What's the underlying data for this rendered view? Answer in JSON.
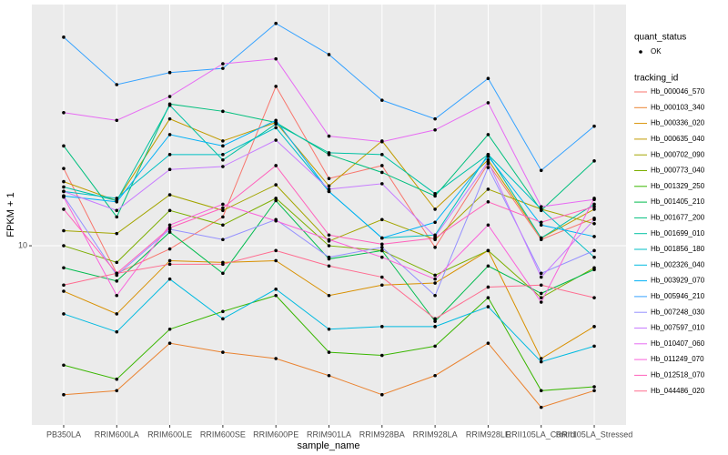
{
  "chart_data": {
    "type": "line",
    "x_label": "sample_name",
    "y_label": "FPKM + 1",
    "log_scale": true,
    "grid": true,
    "point_color": "#000000",
    "legend_position": "right",
    "legend_titles": [
      "quant_status",
      "tracking_id"
    ],
    "point_legend_entries": [
      "OK"
    ],
    "categories": [
      "PB350LA",
      "RRIM600LA",
      "RRIM600LE",
      "RRIM600SE",
      "RRIM600PE",
      "RRIM901LA",
      "RRIM928BA",
      "RRIM928LA",
      "RRIM928LE",
      "RRII105LA_Control",
      "RRII105LA_Stressed"
    ],
    "ylim": [
      3.22,
      45.96
    ],
    "yticks": [
      10
    ],
    "series": [
      {
        "name": "Hb_000046_570",
        "color": "#F8766D",
        "values": [
          16.3,
          8.4,
          9.8,
          12.0,
          27.4,
          15.3,
          16.6,
          9.9,
          16.8,
          10.4,
          11.9
        ]
      },
      {
        "name": "Hb_000103_340",
        "color": "#EA8331",
        "values": [
          3.9,
          4.0,
          5.4,
          5.1,
          4.9,
          4.4,
          3.9,
          4.4,
          5.4,
          3.6,
          4.0
        ]
      },
      {
        "name": "Hb_000336_020",
        "color": "#D89000",
        "values": [
          7.5,
          6.5,
          9.1,
          9.0,
          9.1,
          7.3,
          7.8,
          7.9,
          9.7,
          4.9,
          6.0
        ]
      },
      {
        "name": "Hb_000635_040",
        "color": "#C09B00",
        "values": [
          15.0,
          13.3,
          22.3,
          19.4,
          21.8,
          14.6,
          19.4,
          12.6,
          17.2,
          10.5,
          12.6
        ]
      },
      {
        "name": "Hb_000702_090",
        "color": "#A3A500",
        "values": [
          11.0,
          10.8,
          13.8,
          12.5,
          14.7,
          10.3,
          11.8,
          10.4,
          14.3,
          12.6,
          11.5
        ]
      },
      {
        "name": "Hb_000773_040",
        "color": "#7CAE00",
        "values": [
          10.0,
          9.0,
          12.5,
          11.4,
          13.5,
          10.0,
          9.7,
          8.3,
          9.7,
          7.2,
          8.7
        ]
      },
      {
        "name": "Hb_001329_250",
        "color": "#39B600",
        "values": [
          4.7,
          4.3,
          5.9,
          6.6,
          7.3,
          5.1,
          5.0,
          5.3,
          7.2,
          4.0,
          4.1
        ]
      },
      {
        "name": "Hb_001405_210",
        "color": "#00BB4E",
        "values": [
          8.7,
          8.0,
          10.9,
          8.4,
          13.3,
          9.2,
          9.7,
          6.2,
          8.8,
          7.4,
          8.6
        ]
      },
      {
        "name": "Hb_001677_200",
        "color": "#00BF7D",
        "values": [
          18.8,
          12.0,
          24.5,
          23.4,
          21.8,
          17.8,
          15.9,
          13.7,
          20.2,
          12.5,
          17.1
        ]
      },
      {
        "name": "Hb_001699_010",
        "color": "#00C1A3",
        "values": [
          14.5,
          13.3,
          24.3,
          17.2,
          21.6,
          18.0,
          17.8,
          13.9,
          17.8,
          10.5,
          13.0
        ]
      },
      {
        "name": "Hb_001856_180",
        "color": "#00BFC4",
        "values": [
          14.1,
          13.5,
          17.8,
          17.8,
          21.1,
          14.1,
          10.5,
          10.7,
          17.8,
          12.6,
          9.3
        ]
      },
      {
        "name": "Hb_002326_040",
        "color": "#00BAE0",
        "values": [
          6.5,
          5.8,
          8.1,
          6.3,
          7.6,
          5.9,
          6.0,
          6.0,
          6.8,
          4.8,
          5.3
        ]
      },
      {
        "name": "Hb_003929_070",
        "color": "#00B0F6",
        "values": [
          13.7,
          13.2,
          20.2,
          18.8,
          22.1,
          14.1,
          10.5,
          11.6,
          17.6,
          11.4,
          10.6
        ]
      },
      {
        "name": "Hb_005946_210",
        "color": "#35A2FF",
        "values": [
          37.4,
          27.7,
          29.9,
          30.7,
          40.8,
          33.5,
          25.1,
          22.3,
          28.8,
          16.1,
          21.3
        ]
      },
      {
        "name": "Hb_007248_030",
        "color": "#9590FF",
        "values": [
          13.7,
          8.3,
          11.1,
          10.4,
          11.8,
          9.3,
          9.9,
          7.3,
          16.4,
          8.4,
          9.7
        ]
      },
      {
        "name": "Hb_007597_010",
        "color": "#C77CFF",
        "values": [
          14.1,
          12.5,
          16.2,
          16.5,
          19.5,
          14.3,
          14.8,
          10.6,
          17.0,
          8.2,
          11.8
        ]
      },
      {
        "name": "Hb_010407_060",
        "color": "#E76BF3",
        "values": [
          23.2,
          22.1,
          25.7,
          31.6,
          32.6,
          20.0,
          19.3,
          20.8,
          24.7,
          12.8,
          13.4
        ]
      },
      {
        "name": "Hb_011249_070",
        "color": "#FA62DB",
        "values": [
          13.6,
          7.3,
          11.4,
          13.0,
          11.7,
          10.4,
          9.3,
          8.1,
          11.4,
          7.0,
          13.5
        ]
      },
      {
        "name": "Hb_012518_070",
        "color": "#FF62BC",
        "values": [
          12.6,
          8.4,
          11.2,
          12.7,
          16.6,
          10.7,
          10.1,
          10.5,
          13.2,
          11.6,
          12.8
        ]
      },
      {
        "name": "Hb_044486_020",
        "color": "#FF6C90",
        "values": [
          7.8,
          8.4,
          8.9,
          8.9,
          9.7,
          8.8,
          8.2,
          6.3,
          7.7,
          7.8,
          7.2
        ]
      }
    ]
  }
}
